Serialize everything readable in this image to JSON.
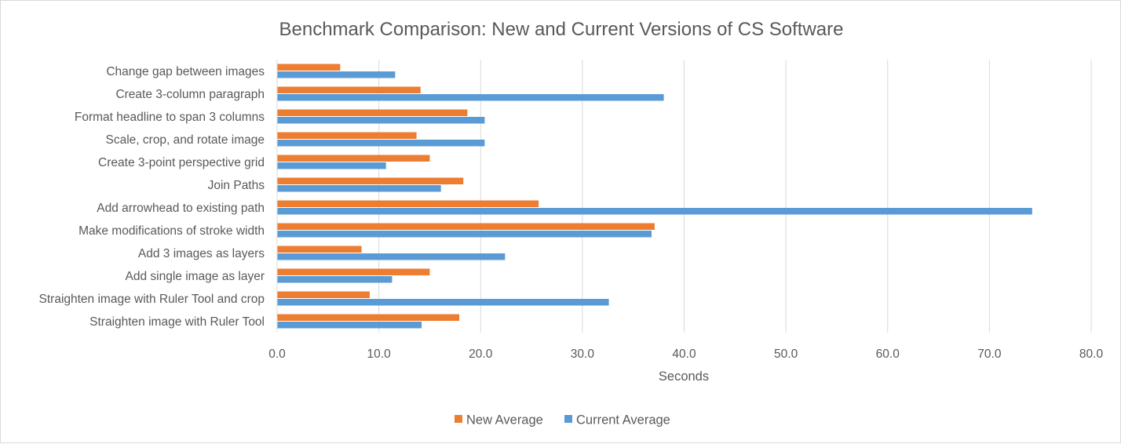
{
  "chart_data": {
    "type": "bar",
    "orientation": "horizontal",
    "title": "Benchmark Comparison: New and Current Versions of CS Software",
    "xlabel": "Seconds",
    "ylabel": "",
    "xlim": [
      0,
      80
    ],
    "xticks": [
      "0.0",
      "10.0",
      "20.0",
      "30.0",
      "40.0",
      "50.0",
      "60.0",
      "70.0",
      "80.0"
    ],
    "grid": "vertical",
    "legend_position": "bottom",
    "categories": [
      "Change gap between images",
      "Create 3-column paragraph",
      "Format headline to span 3 columns",
      "Scale, crop, and rotate image",
      "Create 3-point perspective grid",
      "Join Paths",
      "Add arrowhead to existing path",
      "Make modifications of stroke width",
      "Add 3 images as layers",
      "Add single image as layer",
      "Straighten image with Ruler Tool and crop",
      "Straighten image with Ruler Tool"
    ],
    "series": [
      {
        "name": "New Average",
        "color": "#ED7D31",
        "values": [
          6.2,
          14.1,
          18.7,
          13.7,
          15.0,
          18.3,
          25.7,
          37.1,
          8.3,
          15.0,
          9.1,
          17.9
        ]
      },
      {
        "name": "Current Average",
        "color": "#5B9BD5",
        "values": [
          11.6,
          38.0,
          20.4,
          20.4,
          10.7,
          16.1,
          74.2,
          36.8,
          22.4,
          11.3,
          32.6,
          14.2
        ]
      }
    ]
  }
}
